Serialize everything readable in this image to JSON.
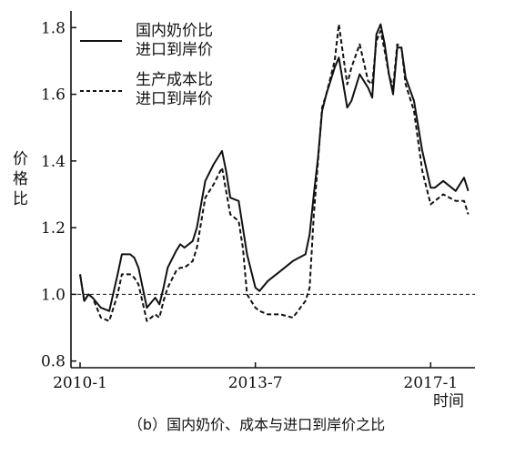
{
  "chart_data": {
    "type": "line",
    "caption": "（b）国内奶价、成本与进口到岸价之比",
    "xlabel": "时间",
    "ylabel": "价格比",
    "x_ticks": [
      "2010-1",
      "2013-7",
      "2017-1"
    ],
    "x_tick_positions": [
      0,
      42,
      84
    ],
    "xlim": [
      0,
      92
    ],
    "ylim": [
      0.78,
      1.85
    ],
    "y_ticks": [
      0.8,
      1.0,
      1.2,
      1.4,
      1.6,
      1.8
    ],
    "reference_line": 1.0,
    "legend": {
      "position": "top-left",
      "entries": [
        {
          "lines": [
            "国内奶价比",
            "进口到岸价"
          ],
          "style": "solid"
        },
        {
          "lines": [
            "生产成本比",
            "进口到岸价"
          ],
          "style": "dashed"
        }
      ]
    },
    "series": [
      {
        "style": "solid",
        "points": [
          [
            0,
            1.06
          ],
          [
            1,
            0.98
          ],
          [
            2,
            1.0
          ],
          [
            3,
            0.99
          ],
          [
            5,
            0.96
          ],
          [
            7,
            0.95
          ],
          [
            9,
            1.06
          ],
          [
            10,
            1.12
          ],
          [
            12,
            1.12
          ],
          [
            13,
            1.11
          ],
          [
            14,
            1.08
          ],
          [
            16,
            0.96
          ],
          [
            18,
            0.99
          ],
          [
            19,
            0.97
          ],
          [
            20,
            1.02
          ],
          [
            21,
            1.08
          ],
          [
            23,
            1.13
          ],
          [
            24,
            1.15
          ],
          [
            25,
            1.14
          ],
          [
            27,
            1.16
          ],
          [
            28,
            1.2
          ],
          [
            30,
            1.34
          ],
          [
            32,
            1.39
          ],
          [
            34,
            1.43
          ],
          [
            35,
            1.37
          ],
          [
            36,
            1.29
          ],
          [
            38,
            1.28
          ],
          [
            39,
            1.2
          ],
          [
            40,
            1.12
          ],
          [
            42,
            1.02
          ],
          [
            43,
            1.01
          ],
          [
            45,
            1.04
          ],
          [
            48,
            1.07
          ],
          [
            51,
            1.1
          ],
          [
            54,
            1.12
          ],
          [
            55,
            1.18
          ],
          [
            56,
            1.3
          ],
          [
            57,
            1.41
          ],
          [
            58,
            1.55
          ],
          [
            59,
            1.6
          ],
          [
            61,
            1.68
          ],
          [
            62,
            1.71
          ],
          [
            64,
            1.56
          ],
          [
            65,
            1.58
          ],
          [
            67,
            1.66
          ],
          [
            69,
            1.62
          ],
          [
            70,
            1.59
          ],
          [
            71,
            1.78
          ],
          [
            72,
            1.81
          ],
          [
            73,
            1.75
          ],
          [
            74,
            1.66
          ],
          [
            75,
            1.6
          ],
          [
            76,
            1.74
          ],
          [
            77,
            1.74
          ],
          [
            78,
            1.65
          ],
          [
            80,
            1.58
          ],
          [
            82,
            1.43
          ],
          [
            84,
            1.32
          ],
          [
            85,
            1.32
          ],
          [
            87,
            1.34
          ],
          [
            90,
            1.31
          ],
          [
            92,
            1.35
          ],
          [
            93,
            1.31
          ]
        ]
      },
      {
        "style": "dashed",
        "points": [
          [
            0,
            1.06
          ],
          [
            1,
            0.98
          ],
          [
            2,
            1.0
          ],
          [
            3,
            0.99
          ],
          [
            5,
            0.93
          ],
          [
            7,
            0.92
          ],
          [
            9,
            1.0
          ],
          [
            10,
            1.06
          ],
          [
            12,
            1.06
          ],
          [
            13,
            1.05
          ],
          [
            14,
            1.03
          ],
          [
            16,
            0.92
          ],
          [
            18,
            0.94
          ],
          [
            19,
            0.93
          ],
          [
            20,
            0.98
          ],
          [
            21,
            1.02
          ],
          [
            23,
            1.07
          ],
          [
            24,
            1.08
          ],
          [
            25,
            1.08
          ],
          [
            27,
            1.1
          ],
          [
            28,
            1.14
          ],
          [
            30,
            1.29
          ],
          [
            32,
            1.33
          ],
          [
            34,
            1.38
          ],
          [
            35,
            1.31
          ],
          [
            36,
            1.24
          ],
          [
            38,
            1.22
          ],
          [
            39,
            1.14
          ],
          [
            40,
            1.0
          ],
          [
            42,
            0.96
          ],
          [
            43,
            0.95
          ],
          [
            45,
            0.94
          ],
          [
            48,
            0.94
          ],
          [
            51,
            0.93
          ],
          [
            54,
            0.98
          ],
          [
            55,
            1.02
          ],
          [
            56,
            1.24
          ],
          [
            57,
            1.4
          ],
          [
            58,
            1.56
          ],
          [
            59,
            1.6
          ],
          [
            61,
            1.7
          ],
          [
            62,
            1.81
          ],
          [
            64,
            1.63
          ],
          [
            65,
            1.68
          ],
          [
            67,
            1.75
          ],
          [
            69,
            1.64
          ],
          [
            70,
            1.63
          ],
          [
            71,
            1.76
          ],
          [
            72,
            1.79
          ],
          [
            73,
            1.73
          ],
          [
            74,
            1.66
          ],
          [
            75,
            1.62
          ],
          [
            76,
            1.75
          ],
          [
            77,
            1.74
          ],
          [
            78,
            1.63
          ],
          [
            80,
            1.55
          ],
          [
            82,
            1.37
          ],
          [
            84,
            1.27
          ],
          [
            85,
            1.28
          ],
          [
            87,
            1.3
          ],
          [
            90,
            1.28
          ],
          [
            92,
            1.28
          ],
          [
            93,
            1.24
          ]
        ]
      }
    ]
  }
}
